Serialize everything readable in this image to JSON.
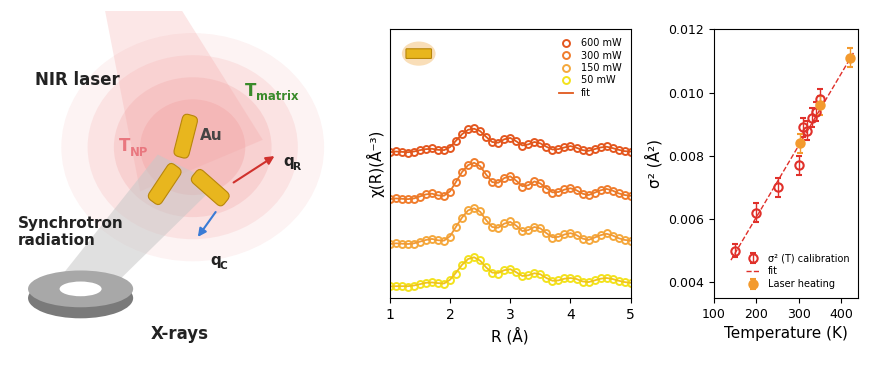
{
  "diagram": {
    "laser_label": "NIR laser",
    "matrix_temperature": {
      "main": "T",
      "sub": "matrix"
    },
    "particle_temperature": {
      "main": "T",
      "sub": "NP"
    },
    "particle_label": "Au",
    "radiative_flux": {
      "main": "q",
      "sub": "R"
    },
    "conductive_flux": {
      "main": "q",
      "sub": "C"
    },
    "source_label": "Synchrotron\nradiation",
    "beam_label": "X-rays"
  },
  "chart_data": [
    {
      "type": "line",
      "xlabel": "R (Å)",
      "ylabel": "χ(R)(Å⁻³)",
      "xlim": [
        1,
        5
      ],
      "xticks": [
        1,
        2,
        3,
        4,
        5
      ],
      "ylim": [
        -0.3,
        7.6
      ],
      "yticks": [],
      "tick_labels": "x",
      "legend": "upper right",
      "x": [
        1.0,
        1.1,
        1.2,
        1.3,
        1.4,
        1.5,
        1.6,
        1.7,
        1.8,
        1.9,
        2.0,
        2.1,
        2.2,
        2.3,
        2.4,
        2.5,
        2.6,
        2.7,
        2.8,
        2.9,
        3.0,
        3.1,
        3.2,
        3.3,
        3.4,
        3.5,
        3.6,
        3.7,
        3.8,
        3.9,
        4.0,
        4.1,
        4.2,
        4.3,
        4.4,
        4.5,
        4.6,
        4.7,
        4.8,
        4.9,
        5.0
      ],
      "series": [
        {
          "name": "600 mW",
          "type": "scatter",
          "marker": "open_circle",
          "color": "#e4561e",
          "values": [
            4.0,
            4.02,
            4.0,
            3.98,
            4.0,
            4.04,
            4.08,
            4.1,
            4.06,
            4.04,
            4.12,
            4.32,
            4.52,
            4.66,
            4.7,
            4.62,
            4.44,
            4.28,
            4.26,
            4.38,
            4.42,
            4.32,
            4.18,
            4.22,
            4.3,
            4.26,
            4.14,
            4.06,
            4.08,
            4.14,
            4.18,
            4.12,
            4.04,
            4.02,
            4.08,
            4.14,
            4.16,
            4.12,
            4.06,
            4.02,
            4.0
          ]
        },
        {
          "name": "300 mW",
          "type": "scatter",
          "marker": "open_circle",
          "color": "#f07c2c",
          "values": [
            2.62,
            2.64,
            2.62,
            2.6,
            2.62,
            2.68,
            2.76,
            2.78,
            2.72,
            2.7,
            2.82,
            3.1,
            3.4,
            3.62,
            3.7,
            3.6,
            3.34,
            3.1,
            3.08,
            3.24,
            3.3,
            3.16,
            2.98,
            3.02,
            3.14,
            3.08,
            2.92,
            2.8,
            2.82,
            2.9,
            2.94,
            2.88,
            2.76,
            2.72,
            2.8,
            2.88,
            2.92,
            2.86,
            2.78,
            2.72,
            2.7
          ]
        },
        {
          "name": "150 mW",
          "type": "scatter",
          "marker": "open_circle",
          "color": "#f5a83c",
          "values": [
            1.3,
            1.32,
            1.3,
            1.28,
            1.3,
            1.35,
            1.42,
            1.45,
            1.4,
            1.38,
            1.5,
            1.78,
            2.05,
            2.28,
            2.36,
            2.26,
            2.0,
            1.78,
            1.76,
            1.9,
            1.96,
            1.84,
            1.66,
            1.7,
            1.8,
            1.76,
            1.6,
            1.48,
            1.5,
            1.58,
            1.62,
            1.56,
            1.44,
            1.4,
            1.48,
            1.56,
            1.6,
            1.54,
            1.46,
            1.4,
            1.38
          ]
        },
        {
          "name": "50 mW",
          "type": "scatter",
          "marker": "open_circle",
          "color": "#f3e21c",
          "values": [
            0.05,
            0.06,
            0.05,
            0.04,
            0.06,
            0.1,
            0.15,
            0.17,
            0.14,
            0.12,
            0.22,
            0.42,
            0.66,
            0.84,
            0.9,
            0.82,
            0.62,
            0.44,
            0.42,
            0.52,
            0.56,
            0.46,
            0.34,
            0.38,
            0.44,
            0.4,
            0.28,
            0.2,
            0.22,
            0.28,
            0.3,
            0.26,
            0.18,
            0.16,
            0.22,
            0.28,
            0.3,
            0.26,
            0.2,
            0.16,
            0.14
          ]
        },
        {
          "name": "fit",
          "type": "line",
          "color": "#e0581c",
          "values": [
            3.99,
            4.01,
            4.0,
            3.99,
            4.01,
            4.05,
            4.08,
            4.09,
            4.06,
            4.05,
            4.14,
            4.33,
            4.52,
            4.65,
            4.68,
            4.61,
            4.44,
            4.29,
            4.27,
            4.37,
            4.41,
            4.31,
            4.19,
            4.22,
            4.29,
            4.25,
            4.15,
            4.07,
            4.08,
            4.13,
            4.17,
            4.12,
            4.05,
            4.03,
            4.08,
            4.13,
            4.15,
            4.11,
            4.06,
            4.02,
            4.01
          ]
        },
        {
          "name": "fit",
          "type": "line",
          "color": "#ea7a28",
          "values": [
            2.61,
            2.63,
            2.62,
            2.61,
            2.63,
            2.69,
            2.75,
            2.77,
            2.72,
            2.71,
            2.84,
            3.12,
            3.41,
            3.61,
            3.68,
            3.58,
            3.33,
            3.11,
            3.09,
            3.23,
            3.28,
            3.15,
            2.99,
            3.02,
            3.13,
            3.07,
            2.93,
            2.81,
            2.82,
            2.89,
            2.93,
            2.87,
            2.77,
            2.73,
            2.8,
            2.87,
            2.91,
            2.86,
            2.78,
            2.73,
            2.71
          ]
        },
        {
          "name": "fit",
          "type": "line",
          "color": "#f09a36",
          "values": [
            1.29,
            1.31,
            1.3,
            1.29,
            1.31,
            1.36,
            1.41,
            1.44,
            1.4,
            1.39,
            1.52,
            1.8,
            2.07,
            2.28,
            2.34,
            2.24,
            1.99,
            1.79,
            1.77,
            1.89,
            1.94,
            1.83,
            1.67,
            1.7,
            1.79,
            1.75,
            1.61,
            1.49,
            1.5,
            1.57,
            1.61,
            1.55,
            1.45,
            1.41,
            1.48,
            1.55,
            1.59,
            1.54,
            1.46,
            1.41,
            1.39
          ]
        },
        {
          "name": "fit",
          "type": "line",
          "color": "#f0c21e",
          "values": [
            0.04,
            0.05,
            0.05,
            0.05,
            0.07,
            0.11,
            0.15,
            0.16,
            0.14,
            0.13,
            0.24,
            0.45,
            0.68,
            0.85,
            0.9,
            0.8,
            0.6,
            0.45,
            0.44,
            0.52,
            0.55,
            0.46,
            0.35,
            0.37,
            0.43,
            0.4,
            0.29,
            0.21,
            0.22,
            0.27,
            0.29,
            0.26,
            0.19,
            0.17,
            0.22,
            0.27,
            0.29,
            0.26,
            0.21,
            0.17,
            0.15
          ]
        }
      ]
    },
    {
      "type": "scatter",
      "xlabel": "Temperature (K)",
      "ylabel": "σ² (Å²)",
      "xlim": [
        100,
        440
      ],
      "xticks": [
        100,
        200,
        300,
        400
      ],
      "ylim": [
        0.0035,
        0.012
      ],
      "yticks": [
        0.004,
        0.006,
        0.008,
        {
          "value": 0.01,
          "label": "0.010"
        },
        0.012
      ],
      "legend": "lower right",
      "series": [
        {
          "name": "σ² (T) calibration",
          "type": "scatter",
          "marker": "open_circle",
          "color": "#e0302a",
          "x": [
            150,
            200,
            250,
            300,
            310,
            320,
            330,
            340,
            350
          ],
          "values": [
            0.005,
            0.0062,
            0.007,
            0.0077,
            0.0089,
            0.0088,
            0.0092,
            0.0094,
            0.0098
          ],
          "errors": [
            0.0002,
            0.0003,
            0.0003,
            0.0003,
            0.0003,
            0.0003,
            0.0003,
            0.0003,
            0.0003
          ]
        },
        {
          "name": "fit",
          "type": "line",
          "line_style": "dashed",
          "color": "#e0302a",
          "x": [
            140,
            430
          ],
          "values": [
            0.0047,
            0.0113
          ]
        },
        {
          "name": "Laser heating",
          "type": "scatter",
          "marker": "circle",
          "color": "#f39a2e",
          "x": [
            302,
            350,
            420
          ],
          "values": [
            0.0084,
            0.0096,
            0.0111
          ],
          "errors": [
            0.0003,
            0.0003,
            0.0003
          ]
        }
      ]
    }
  ]
}
